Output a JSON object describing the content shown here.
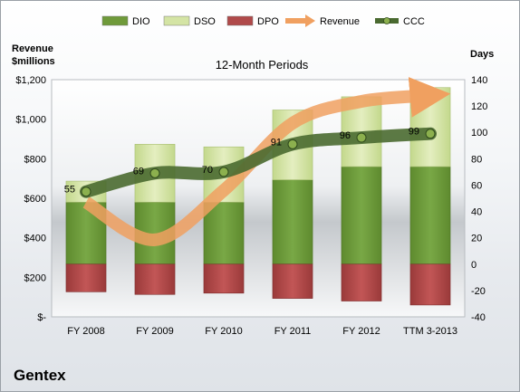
{
  "chart_data": {
    "type": "bar",
    "title": "12-Month Periods",
    "company": "Gentex",
    "categories": [
      "FY 2008",
      "FY 2009",
      "FY 2010",
      "FY 2011",
      "FY 2012",
      "TTM 3-2013"
    ],
    "legend": {
      "placement": "top",
      "items": [
        {
          "name": "DIO",
          "color": "#6f9a3a"
        },
        {
          "name": "DSO",
          "color": "#d4e4a4"
        },
        {
          "name": "DPO",
          "color": "#b04a4a"
        },
        {
          "name": "Revenue",
          "color": "#f0a060"
        },
        {
          "name": "CCC",
          "color": "#4a6a30"
        }
      ]
    },
    "left_axis": {
      "title_line1": "Revenue",
      "title_line2": "$millions",
      "min": 0,
      "max": 1200,
      "ticks": [
        0,
        200,
        400,
        600,
        800,
        1000,
        1200
      ],
      "tick_labels": [
        "$-",
        "$200",
        "$400",
        "$600",
        "$800",
        "$1,000",
        "$1,200"
      ]
    },
    "right_axis": {
      "title": "Days",
      "min": -40,
      "max": 140,
      "ticks": [
        -40,
        -20,
        0,
        20,
        40,
        60,
        80,
        100,
        120,
        140
      ],
      "tick_labels": [
        "-40",
        "-20",
        "0",
        "20",
        "40",
        "60",
        "80",
        "100",
        "120",
        "140"
      ]
    },
    "series": [
      {
        "name": "DIO",
        "axis": "right",
        "values": [
          47,
          47,
          47,
          64,
          74,
          74
        ]
      },
      {
        "name": "DSO",
        "axis": "right",
        "values": [
          16,
          44,
          42,
          53,
          53,
          60
        ]
      },
      {
        "name": "DPO",
        "axis": "right",
        "values": [
          -21,
          -23,
          -22,
          -26,
          -28,
          -31
        ]
      },
      {
        "name": "Revenue",
        "axis": "left",
        "values": [
          580,
          390,
          640,
          980,
          1090,
          1120
        ]
      },
      {
        "name": "CCC",
        "axis": "right",
        "values": [
          55,
          69,
          70,
          91,
          96,
          99
        ],
        "labels": [
          "55",
          "69",
          "70",
          "91",
          "96",
          "99"
        ]
      }
    ],
    "grid": false
  }
}
